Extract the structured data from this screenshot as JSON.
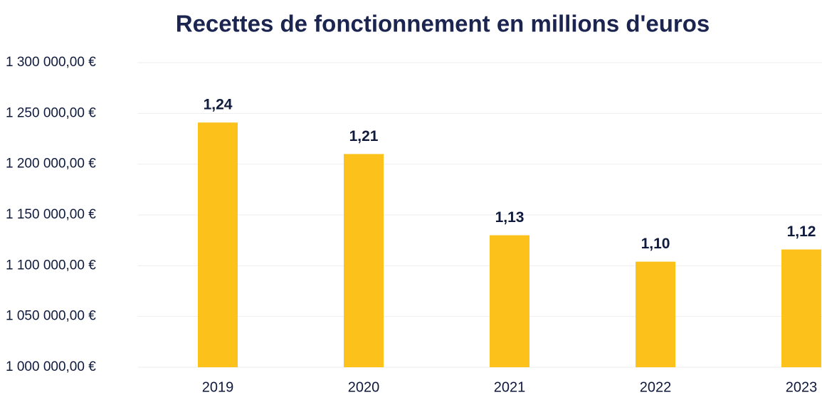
{
  "chart_data": {
    "type": "bar",
    "title": "Recettes de fonctionnement en millions d'euros",
    "categories": [
      "2019",
      "2020",
      "2021",
      "2022",
      "2023"
    ],
    "values": [
      1241000,
      1210000,
      1130000,
      1104000,
      1116000
    ],
    "value_labels": [
      "1,24",
      "1,21",
      "1,13",
      "1,10",
      "1,12"
    ],
    "color": "#fcc21b",
    "ylim": [
      1000000,
      1300000
    ],
    "yticks": [
      {
        "value": 1000000,
        "label": "1 000 000,00 €"
      },
      {
        "value": 1050000,
        "label": "1 050 000,00 €"
      },
      {
        "value": 1100000,
        "label": "1 100 000,00 €"
      },
      {
        "value": 1150000,
        "label": "1 150 000,00 €"
      },
      {
        "value": 1200000,
        "label": "1 200 000,00 €"
      },
      {
        "value": 1250000,
        "label": "1 250 000,00 €"
      },
      {
        "value": 1300000,
        "label": "1 300 000,00 €"
      }
    ],
    "grid": true
  }
}
